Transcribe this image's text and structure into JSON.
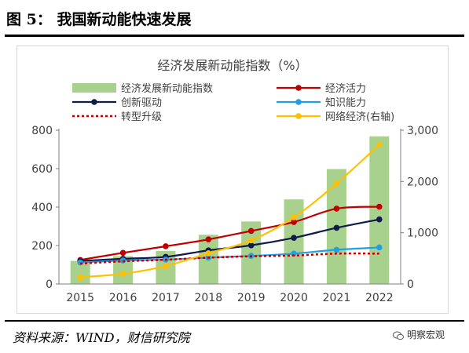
{
  "figure": {
    "title": "图 5：  我国新动能快速发展",
    "source": "资料来源：WIND，财信研究院",
    "watermark": "明察宏观",
    "watermark_icon": "wechat-icon"
  },
  "chart_data": {
    "type": "bar",
    "title": "经济发展新动能指数（%）",
    "categories": [
      "2015",
      "2016",
      "2017",
      "2018",
      "2019",
      "2020",
      "2021",
      "2022"
    ],
    "ylim_left": [
      0,
      800
    ],
    "yticks_left": [
      "0",
      "200",
      "400",
      "600",
      "800"
    ],
    "ylim_right": [
      0,
      3000
    ],
    "yticks_right": [
      "0",
      "1,000",
      "2,000",
      "3,000"
    ],
    "grid": false,
    "legend_position": "top",
    "series": [
      {
        "name": "经济发展新动能指数",
        "kind": "bar",
        "axis": "left",
        "color": "#a9d18e",
        "values": [
          120,
          145,
          172,
          256,
          325,
          440,
          598,
          768
        ]
      },
      {
        "name": "经济活力",
        "kind": "line",
        "axis": "left",
        "color": "#c00000",
        "dash": false,
        "values": [
          125,
          162,
          196,
          232,
          276,
          322,
          392,
          402
        ]
      },
      {
        "name": "创新驱动",
        "kind": "line",
        "axis": "left",
        "color": "#0d1b4b",
        "dash": false,
        "values": [
          120,
          131,
          141,
          175,
          201,
          240,
          292,
          336
        ]
      },
      {
        "name": "知识能力",
        "kind": "line",
        "axis": "left",
        "color": "#1ea0e6",
        "dash": false,
        "values": [
          112,
          122,
          127,
          137,
          146,
          158,
          178,
          190
        ]
      },
      {
        "name": "转型升级",
        "kind": "line",
        "axis": "left",
        "color": "#c00000",
        "dash": true,
        "values": [
          106,
          118,
          126,
          137,
          144,
          148,
          158,
          158
        ]
      },
      {
        "name": "网络经济(右轴)",
        "kind": "line",
        "axis": "right",
        "color": "#ffc000",
        "dash": false,
        "values": [
          130,
          200,
          350,
          600,
          850,
          1300,
          1960,
          2720
        ]
      }
    ]
  }
}
